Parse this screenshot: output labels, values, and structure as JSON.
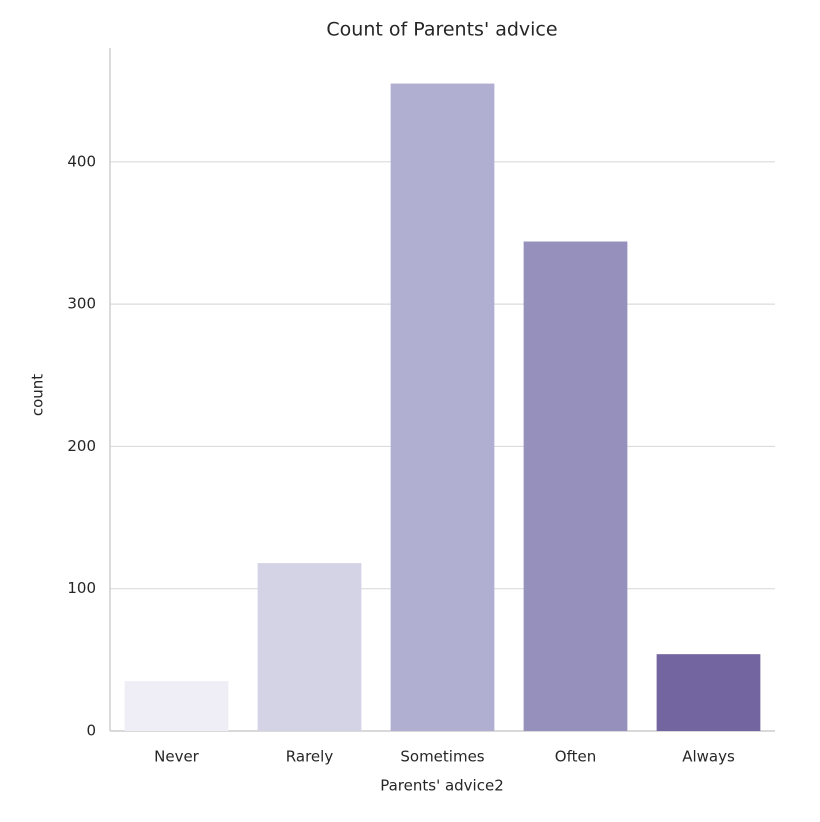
{
  "chart_data": {
    "type": "bar",
    "title": "Count of Parents' advice",
    "x_label": "Parents' advice2",
    "y_label": "count",
    "categories": [
      "Never",
      "Rarely",
      "Sometimes",
      "Often",
      "Always"
    ],
    "values": [
      35,
      118,
      455,
      344,
      54
    ],
    "colors": [
      "#efedf5",
      "#d4d3e6",
      "#b0afd1",
      "#9590bc",
      "#73659f"
    ],
    "ylim": [
      0,
      480
    ],
    "yticks": [
      0,
      100,
      200,
      300,
      400
    ],
    "grid": true
  }
}
